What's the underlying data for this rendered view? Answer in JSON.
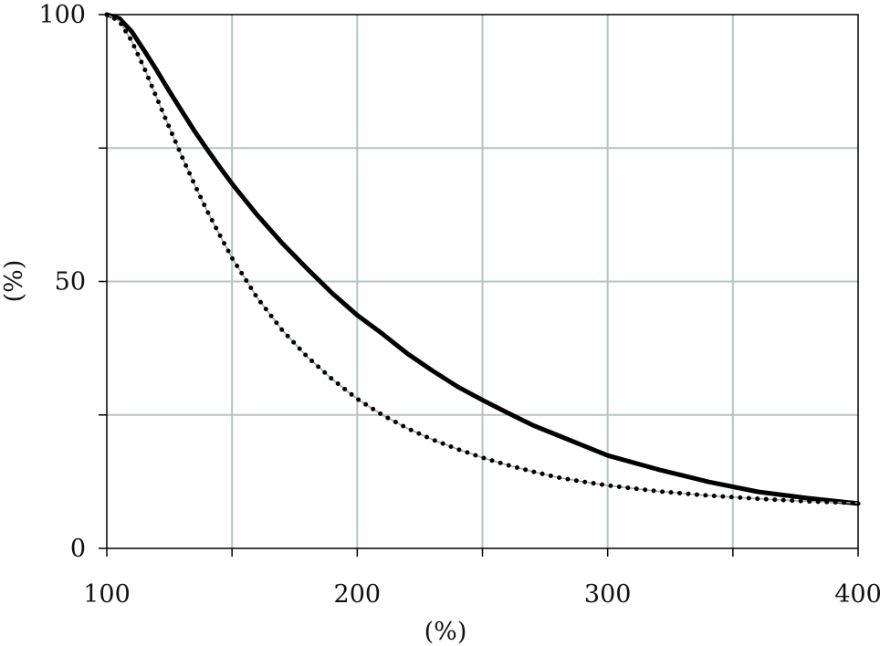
{
  "chart_data": {
    "type": "line",
    "xlabel": "(%)",
    "ylabel": "(%)",
    "xlim": [
      100,
      400
    ],
    "ylim": [
      0,
      100
    ],
    "x_ticks": [
      100,
      150,
      200,
      250,
      300,
      350,
      400
    ],
    "x_tick_labels": [
      "100",
      "",
      "200",
      "",
      "300",
      "",
      "400"
    ],
    "y_ticks": [
      0,
      25,
      50,
      75,
      100
    ],
    "y_tick_labels": [
      "0",
      "",
      "50",
      "",
      "100"
    ],
    "grid": true,
    "grid_color": "#b4c4c4",
    "series": [
      {
        "style": "solid",
        "color": "#000000",
        "x": [
          100,
          105,
          110,
          115,
          120,
          125,
          130,
          135,
          140,
          145,
          150,
          160,
          170,
          180,
          190,
          200,
          210,
          220,
          230,
          240,
          250,
          260,
          270,
          280,
          290,
          300,
          320,
          340,
          360,
          380,
          400
        ],
        "y": [
          100,
          99.3,
          96.8,
          93.2,
          89.5,
          85.6,
          81.9,
          78.2,
          74.8,
          71.5,
          68.3,
          62.5,
          57.2,
          52.4,
          47.8,
          43.7,
          40.2,
          36.5,
          33.3,
          30.3,
          27.8,
          25.4,
          23.1,
          21.2,
          19.3,
          17.4,
          14.8,
          12.5,
          10.6,
          9.4,
          8.4
        ]
      },
      {
        "style": "dotted",
        "color": "#000000",
        "x": [
          100,
          105,
          110,
          115,
          120,
          125,
          130,
          135,
          140,
          145,
          150,
          160,
          170,
          180,
          190,
          200,
          210,
          220,
          230,
          240,
          250,
          260,
          270,
          280,
          290,
          300,
          320,
          340,
          360,
          380,
          400
        ],
        "y": [
          100,
          98.8,
          95.0,
          89.9,
          84.3,
          78.8,
          73.4,
          68.2,
          63.3,
          58.8,
          54.4,
          47.0,
          40.9,
          35.9,
          31.7,
          28.0,
          25.0,
          22.5,
          20.4,
          18.6,
          17.0,
          15.6,
          14.4,
          13.3,
          12.5,
          11.8,
          10.7,
          9.9,
          9.3,
          8.8,
          8.5
        ]
      }
    ]
  }
}
